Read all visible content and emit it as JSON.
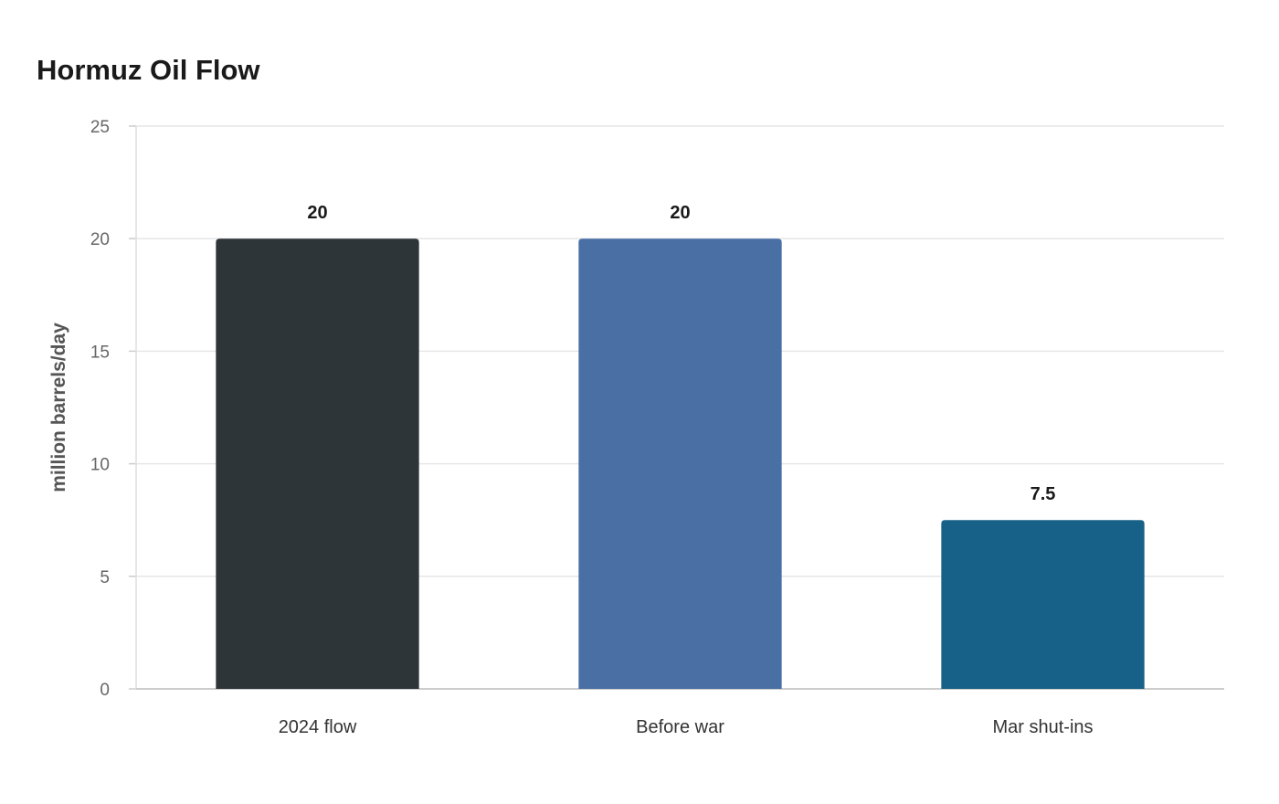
{
  "chart_data": {
    "type": "bar",
    "title": "Hormuz Oil Flow",
    "xlabel": "",
    "ylabel": "million barrels/day",
    "categories": [
      "2024 flow",
      "Before war",
      "Mar shut-ins"
    ],
    "values": [
      20,
      20,
      7.5
    ],
    "value_labels": [
      "20",
      "20",
      "7.5"
    ],
    "bar_colors": [
      "#2e3538",
      "#4a6fa5",
      "#176087"
    ],
    "ylim": [
      0,
      25
    ],
    "yticks": [
      0,
      5,
      10,
      15,
      20,
      25
    ],
    "grid": true,
    "legend": "none"
  }
}
